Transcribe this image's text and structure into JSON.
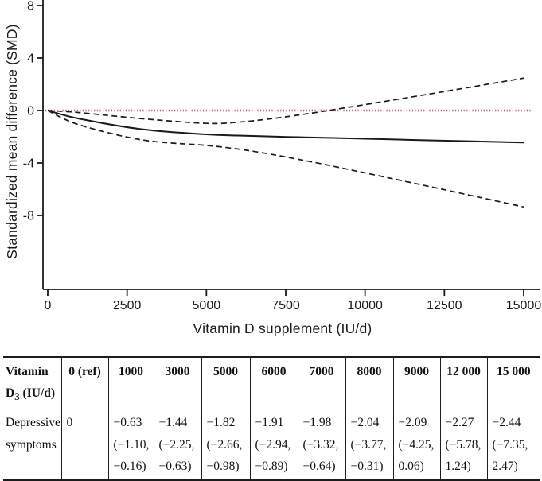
{
  "chart_data": {
    "type": "line",
    "title": "",
    "xlabel": "Vitamin D supplement (IU/d)",
    "ylabel": "Standardized mean difference (SMD)",
    "x": [
      0,
      1000,
      3000,
      5000,
      6000,
      7000,
      8000,
      9000,
      12000,
      15000
    ],
    "series": [
      {
        "name": "estimate",
        "style": "solid",
        "values": [
          0,
          -0.63,
          -1.44,
          -1.82,
          -1.91,
          -1.98,
          -2.04,
          -2.09,
          -2.27,
          -2.44
        ]
      },
      {
        "name": "ci_upper_bound",
        "style": "dashed",
        "values": [
          0,
          -0.16,
          -0.63,
          -0.98,
          -0.89,
          -0.64,
          -0.31,
          0.06,
          1.24,
          2.47
        ]
      },
      {
        "name": "ci_lower_bound",
        "style": "dashed",
        "values": [
          0,
          -1.1,
          -2.25,
          -2.66,
          -2.94,
          -3.32,
          -3.77,
          -4.25,
          -5.78,
          -7.35
        ]
      }
    ],
    "reference_line_y": 0,
    "x_ticks": [
      0,
      2500,
      5000,
      7500,
      10000,
      12500,
      15000
    ],
    "x_tick_labels": [
      "0",
      "2500",
      "5000",
      "7500",
      "10000",
      "12500",
      "15000"
    ],
    "y_ticks": [
      8,
      4,
      0,
      -4,
      -8
    ],
    "y_tick_labels": [
      "8",
      "4",
      "0",
      "-4",
      "-8"
    ],
    "xlim": [
      0,
      15000
    ],
    "ylim": [
      -13.6,
      8.4
    ],
    "grid": false,
    "legend": "none",
    "colors": {
      "curve": "#1a1a1a",
      "reference": "#c0554e"
    }
  },
  "table": {
    "row_header": {
      "line1": "Vitamin",
      "d": "D",
      "sub": "3",
      "rest": " (IU/d)"
    },
    "row_label_lines": [
      "Depressive",
      "symptoms"
    ],
    "columns": [
      {
        "header": "0 (ref)",
        "lines": [
          "0"
        ]
      },
      {
        "header": "1000",
        "lines": [
          "−0.63",
          "(−1.10,",
          "−0.16)"
        ]
      },
      {
        "header": "3000",
        "lines": [
          "−1.44",
          "(−2.25,",
          "−0.63)"
        ]
      },
      {
        "header": "5000",
        "lines": [
          "−1.82",
          "(−2.66,",
          "−0.98)"
        ]
      },
      {
        "header": "6000",
        "lines": [
          "−1.91",
          "(−2.94,",
          "−0.89)"
        ]
      },
      {
        "header": "7000",
        "lines": [
          "−1.98",
          "(−3.32,",
          "−0.64)"
        ]
      },
      {
        "header": "8000",
        "lines": [
          "−2.04",
          "(−3.77,",
          "−0.31)"
        ]
      },
      {
        "header": "9000",
        "lines": [
          "−2.09",
          "(−4.25,",
          "0.06)"
        ]
      },
      {
        "header": "12 000",
        "lines": [
          "−2.27",
          "(−5.78,",
          "1.24)"
        ]
      },
      {
        "header": "15 000",
        "lines": [
          "−2.44",
          "(−7.35,",
          "2.47)"
        ]
      }
    ]
  }
}
